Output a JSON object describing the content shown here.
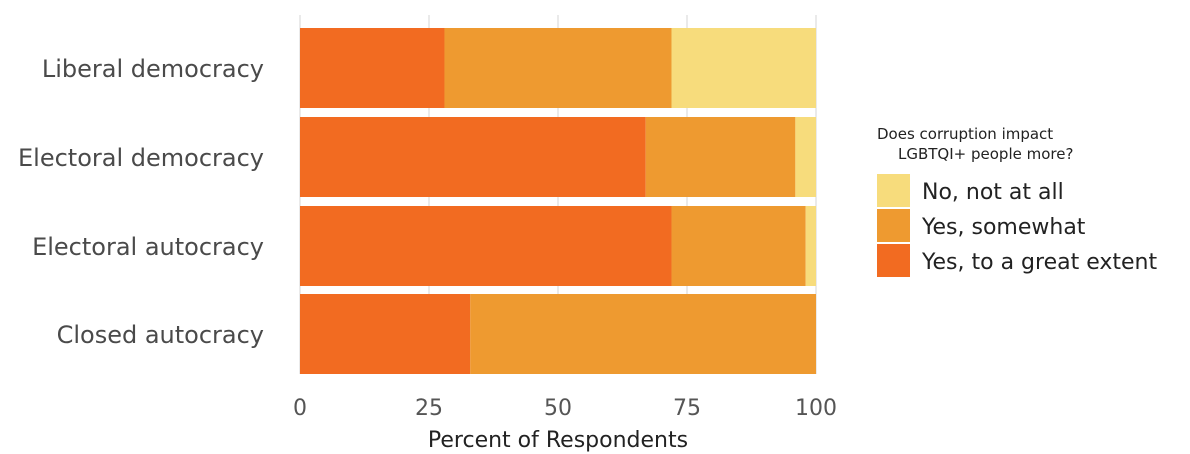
{
  "chart_data": {
    "type": "bar",
    "orientation": "horizontal",
    "stacked": true,
    "categories": [
      "Liberal democracy",
      "Electoral democracy",
      "Electoral autocracy",
      "Closed autocracy"
    ],
    "series": [
      {
        "name": "Yes, to a great extent",
        "color": "#f26b21",
        "values": [
          28,
          67,
          72,
          33
        ]
      },
      {
        "name": "Yes, somewhat",
        "color": "#ee9a30",
        "values": [
          44,
          29,
          26,
          67
        ]
      },
      {
        "name": "No, not at all",
        "color": "#f7dc7c",
        "values": [
          28,
          4,
          2,
          0
        ]
      }
    ],
    "xlabel": "Percent of Respondents",
    "ylabel": "",
    "xlim": [
      0,
      100
    ],
    "xticks": [
      "0",
      "25",
      "50",
      "75",
      "100"
    ],
    "grid": true,
    "legend": {
      "title_line1": "Does corruption impact",
      "title_line2": "LGBTQI+ people more?",
      "placement": "right",
      "entries": [
        "No, not at all",
        "Yes, somewhat",
        "Yes, to a great extent"
      ]
    }
  }
}
